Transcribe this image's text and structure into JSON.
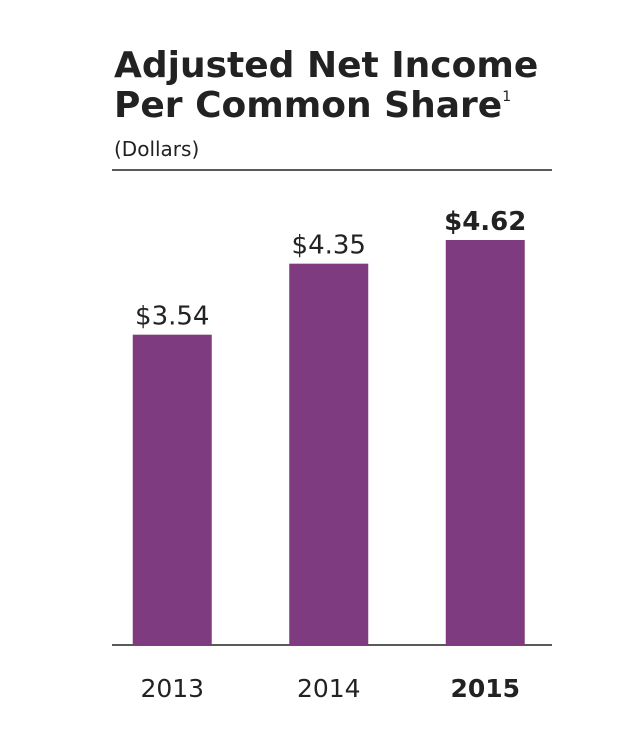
{
  "chart_data": {
    "type": "bar",
    "title": [
      "Adjusted Net Income",
      "Per Common Share"
    ],
    "title_footnote": "1",
    "subtitle": "(Dollars)",
    "categories": [
      "2013",
      "2014",
      "2015"
    ],
    "values": [
      3.54,
      4.35,
      4.62
    ],
    "value_labels": [
      "$3.54",
      "$4.35",
      "$4.62"
    ],
    "color": "#7e3b7f",
    "highlight_category": "2015"
  }
}
